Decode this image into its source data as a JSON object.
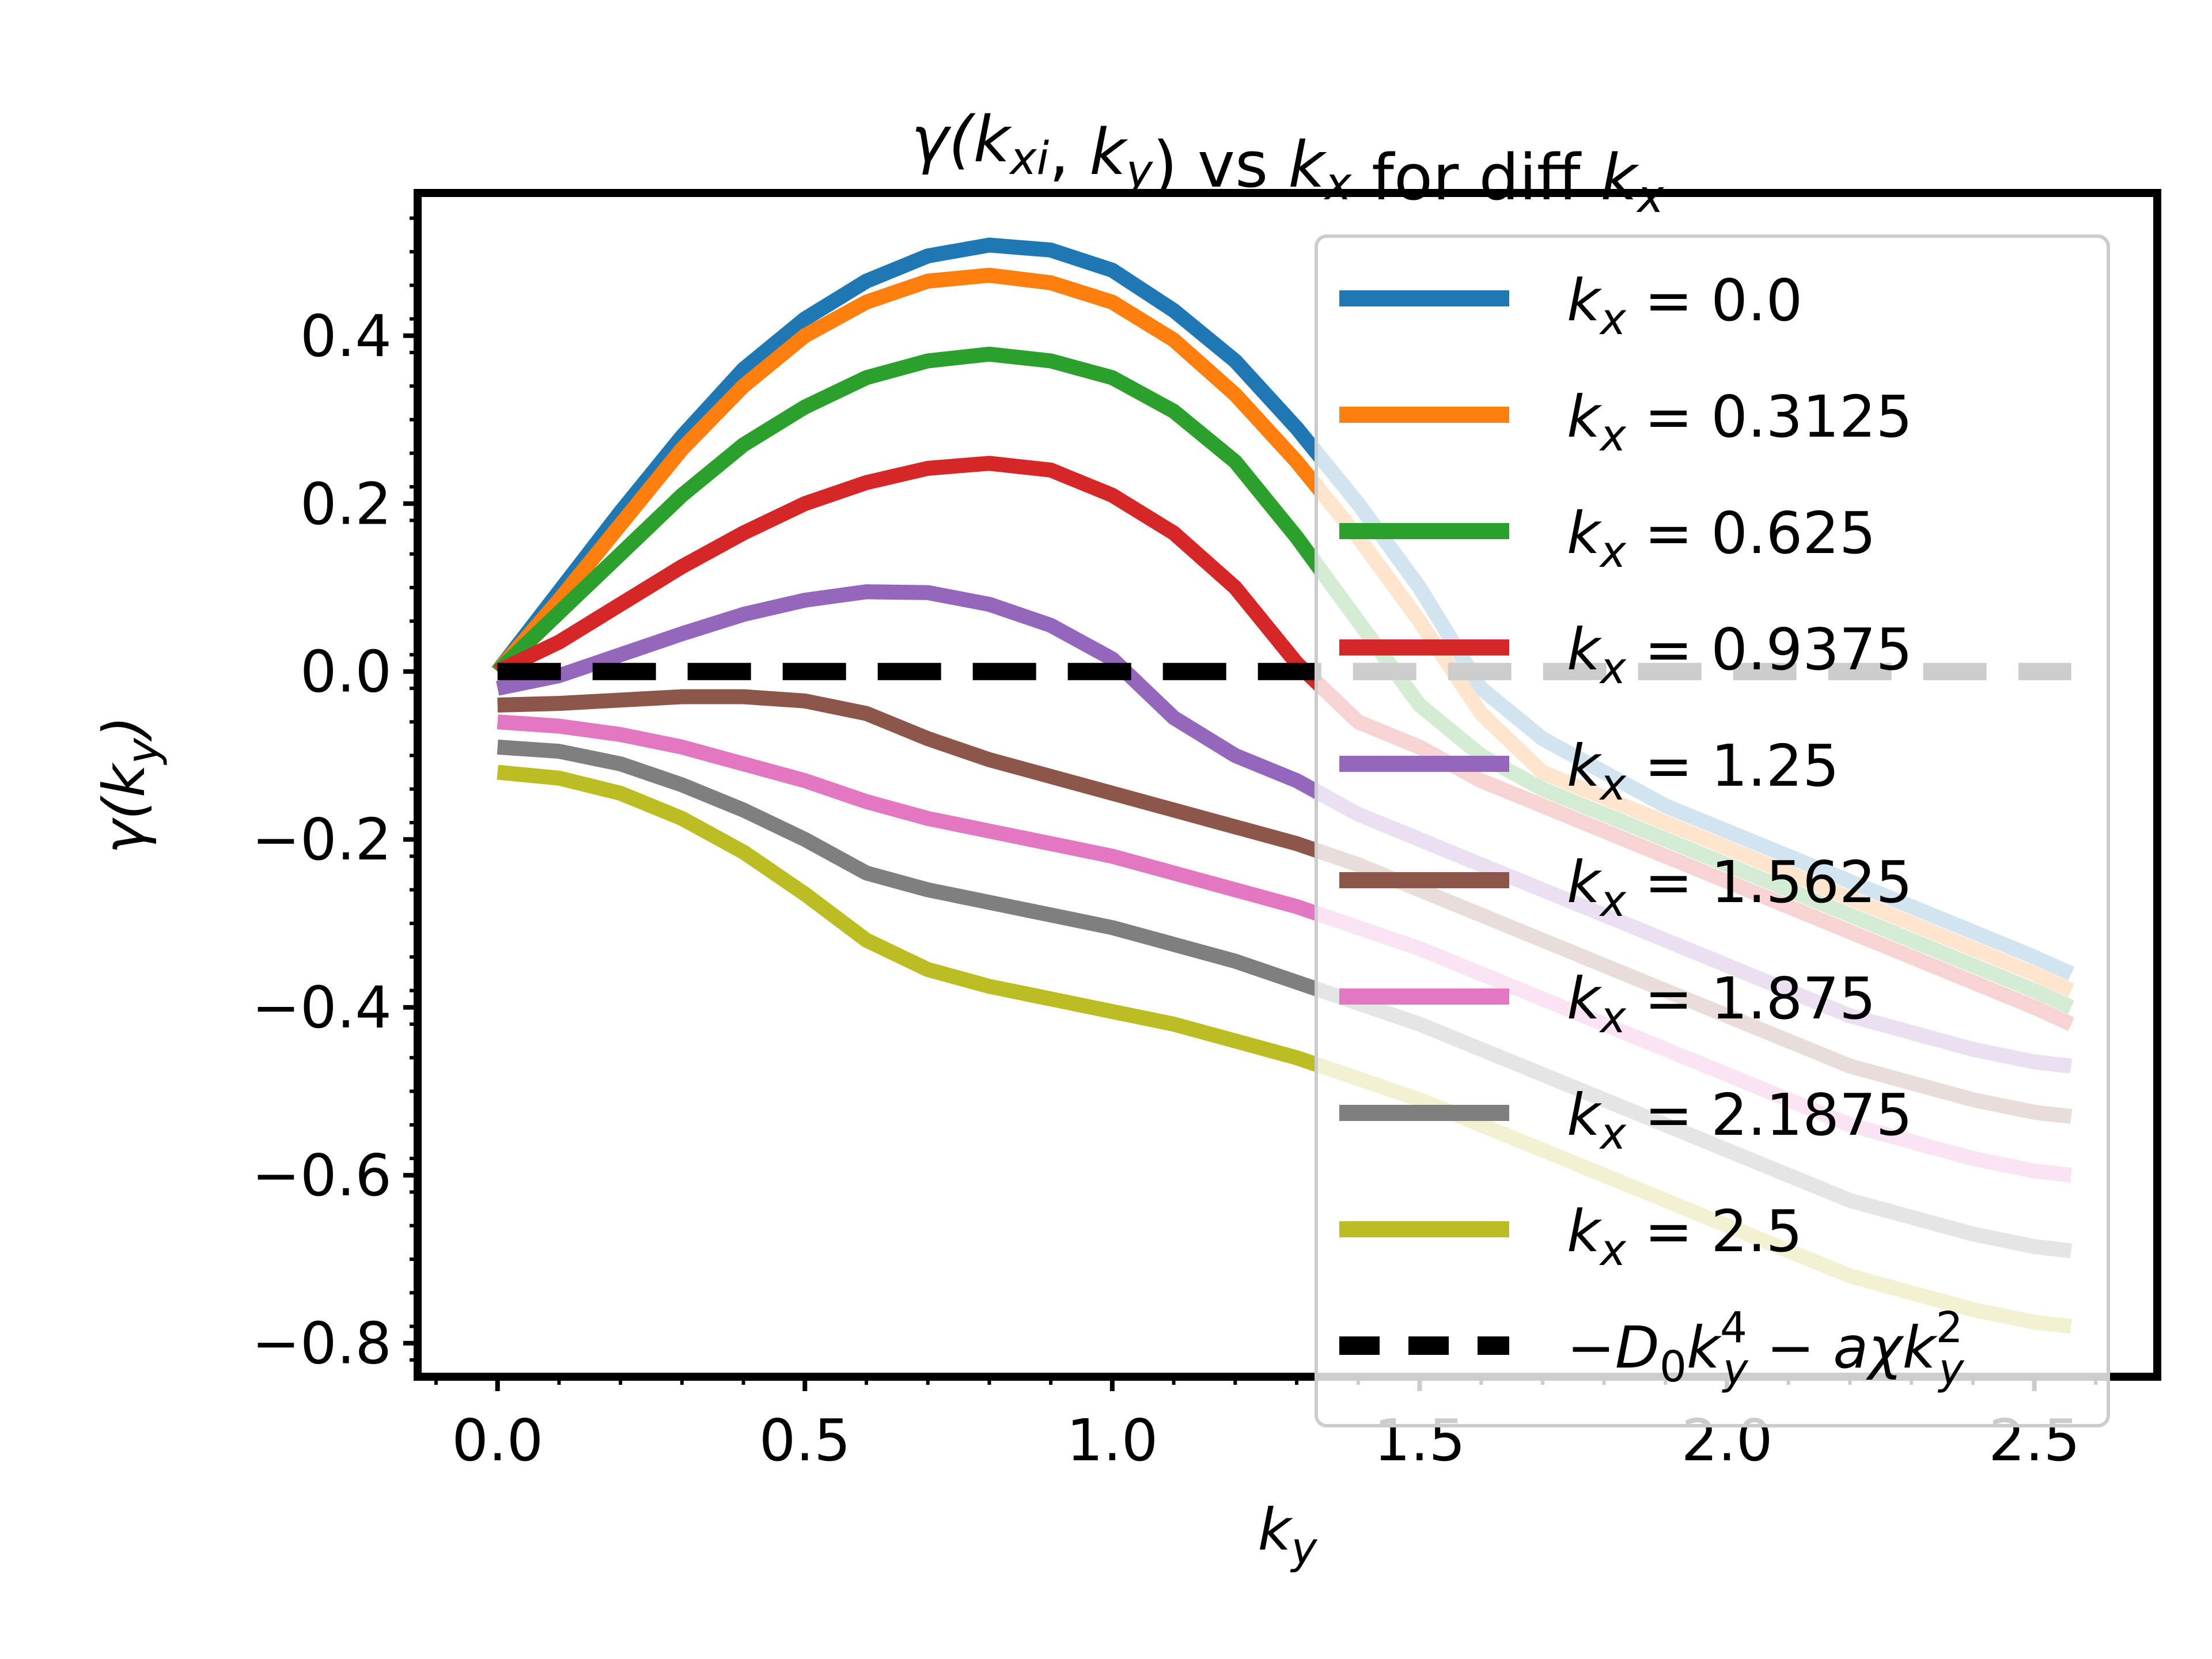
{
  "chart_data": {
    "type": "line",
    "title": {
      "parts": [
        {
          "t": "γ(",
          "math": true
        },
        {
          "t": "k",
          "math": true
        },
        {
          "t": "xi",
          "math": true,
          "sub": true
        },
        {
          "t": ", ",
          "math": false
        },
        {
          "t": "k",
          "math": true
        },
        {
          "t": "y",
          "math": true,
          "sub": true
        },
        {
          "t": ") vs ",
          "math": false
        },
        {
          "t": "k",
          "math": true
        },
        {
          "t": "x",
          "math": true,
          "sub": true
        },
        {
          "t": " for diff ",
          "math": false
        },
        {
          "t": "k",
          "math": true
        },
        {
          "t": "x",
          "math": true,
          "sub": true
        }
      ]
    },
    "xlabel": {
      "main": "k",
      "sub": "y"
    },
    "ylabel": {
      "main": "γ(k",
      "sub": "y",
      "tail": ")"
    },
    "xlim": [
      -0.13,
      2.7
    ],
    "ylim": [
      -0.84,
      0.57
    ],
    "xticks": [
      "0.0",
      "0.5",
      "1.0",
      "1.5",
      "2.0",
      "2.5"
    ],
    "xtick_values": [
      0.0,
      0.5,
      1.0,
      1.5,
      2.0,
      2.5
    ],
    "yticks": [
      "0.4",
      "0.2",
      "0.0",
      "−0.2",
      "−0.4",
      "−0.6",
      "−0.8"
    ],
    "ytick_values": [
      0.4,
      0.2,
      0.0,
      -0.2,
      -0.4,
      -0.6,
      -0.8
    ],
    "grid": false,
    "legend_position": "top-right",
    "x": [
      0.0,
      0.1,
      0.2,
      0.3,
      0.4,
      0.5,
      0.6,
      0.7,
      0.8,
      0.9,
      1.0,
      1.1,
      1.2,
      1.3,
      1.4,
      1.5,
      1.6,
      1.7,
      1.8,
      1.9,
      2.0,
      2.1,
      2.2,
      2.3,
      2.4,
      2.5,
      2.56
    ],
    "series": [
      {
        "name": "k_x = 0.0",
        "label_main": "k",
        "label_sub": "x",
        "label_value": " = 0.0",
        "color": "#1f77b4",
        "dash": false,
        "values": [
          0.0,
          0.095,
          0.19,
          0.28,
          0.36,
          0.42,
          0.465,
          0.495,
          0.508,
          0.502,
          0.478,
          0.43,
          0.37,
          0.29,
          0.2,
          0.1,
          -0.02,
          -0.08,
          -0.12,
          -0.16,
          -0.19,
          -0.22,
          -0.25,
          -0.28,
          -0.31,
          -0.34,
          -0.36
        ]
      },
      {
        "name": "k_x = 0.3125",
        "label_main": "k",
        "label_sub": "x",
        "label_value": " = 0.3125",
        "color": "#ff7f0e",
        "dash": false,
        "values": [
          0.0,
          0.085,
          0.175,
          0.265,
          0.34,
          0.4,
          0.44,
          0.465,
          0.472,
          0.463,
          0.44,
          0.395,
          0.33,
          0.25,
          0.16,
          0.06,
          -0.05,
          -0.12,
          -0.15,
          -0.18,
          -0.21,
          -0.24,
          -0.27,
          -0.3,
          -0.33,
          -0.36,
          -0.38
        ]
      },
      {
        "name": "k_x = 0.625",
        "label_main": "k",
        "label_sub": "x",
        "label_value": " = 0.625",
        "color": "#2ca02c",
        "dash": false,
        "values": [
          0.0,
          0.07,
          0.14,
          0.21,
          0.27,
          0.315,
          0.35,
          0.37,
          0.378,
          0.37,
          0.35,
          0.31,
          0.25,
          0.16,
          0.06,
          -0.04,
          -0.1,
          -0.14,
          -0.17,
          -0.2,
          -0.23,
          -0.26,
          -0.29,
          -0.32,
          -0.35,
          -0.38,
          -0.4
        ]
      },
      {
        "name": "k_x = 0.9375",
        "label_main": "k",
        "label_sub": "x",
        "label_value": " = 0.9375",
        "color": "#d62728",
        "dash": false,
        "values": [
          0.0,
          0.035,
          0.08,
          0.125,
          0.165,
          0.2,
          0.225,
          0.242,
          0.248,
          0.24,
          0.21,
          0.165,
          0.1,
          0.01,
          -0.06,
          -0.09,
          -0.13,
          -0.16,
          -0.19,
          -0.22,
          -0.25,
          -0.28,
          -0.31,
          -0.34,
          -0.37,
          -0.4,
          -0.42
        ]
      },
      {
        "name": "k_x = 1.25",
        "label_main": "k",
        "label_sub": "x",
        "label_value": " = 1.25",
        "color": "#9467bd",
        "dash": false,
        "values": [
          -0.02,
          -0.005,
          0.02,
          0.045,
          0.068,
          0.085,
          0.095,
          0.094,
          0.08,
          0.055,
          0.015,
          -0.055,
          -0.1,
          -0.13,
          -0.17,
          -0.2,
          -0.23,
          -0.26,
          -0.29,
          -0.32,
          -0.35,
          -0.38,
          -0.41,
          -0.43,
          -0.45,
          -0.465,
          -0.47
        ]
      },
      {
        "name": "k_x = 1.5625",
        "label_main": "k",
        "label_sub": "x",
        "label_value": " = 1.5625",
        "color": "#8c564b",
        "dash": false,
        "values": [
          -0.04,
          -0.038,
          -0.034,
          -0.03,
          -0.03,
          -0.035,
          -0.05,
          -0.08,
          -0.105,
          -0.125,
          -0.145,
          -0.165,
          -0.185,
          -0.205,
          -0.23,
          -0.26,
          -0.29,
          -0.32,
          -0.35,
          -0.38,
          -0.41,
          -0.44,
          -0.47,
          -0.49,
          -0.51,
          -0.525,
          -0.53
        ]
      },
      {
        "name": "k_x = 1.875",
        "label_main": "k",
        "label_sub": "x",
        "label_value": " = 1.875",
        "color": "#e377c2",
        "dash": false,
        "values": [
          -0.06,
          -0.065,
          -0.075,
          -0.09,
          -0.11,
          -0.13,
          -0.155,
          -0.175,
          -0.19,
          -0.205,
          -0.22,
          -0.24,
          -0.26,
          -0.28,
          -0.305,
          -0.33,
          -0.36,
          -0.39,
          -0.42,
          -0.45,
          -0.48,
          -0.51,
          -0.54,
          -0.56,
          -0.58,
          -0.595,
          -0.6
        ]
      },
      {
        "name": "k_x = 2.1875",
        "label_main": "k",
        "label_sub": "x",
        "label_value": " = 2.1875",
        "color": "#7f7f7f",
        "dash": false,
        "values": [
          -0.09,
          -0.095,
          -0.11,
          -0.135,
          -0.165,
          -0.2,
          -0.24,
          -0.26,
          -0.275,
          -0.29,
          -0.305,
          -0.325,
          -0.345,
          -0.37,
          -0.395,
          -0.42,
          -0.45,
          -0.48,
          -0.51,
          -0.54,
          -0.57,
          -0.6,
          -0.63,
          -0.65,
          -0.67,
          -0.685,
          -0.69
        ]
      },
      {
        "name": "k_x = 2.5",
        "label_main": "k",
        "label_sub": "x",
        "label_value": " = 2.5",
        "color": "#bcbd22",
        "dash": false,
        "values": [
          -0.12,
          -0.127,
          -0.145,
          -0.175,
          -0.215,
          -0.265,
          -0.32,
          -0.355,
          -0.375,
          -0.39,
          -0.405,
          -0.42,
          -0.44,
          -0.46,
          -0.485,
          -0.51,
          -0.54,
          -0.57,
          -0.6,
          -0.63,
          -0.66,
          -0.69,
          -0.72,
          -0.74,
          -0.76,
          -0.775,
          -0.78
        ]
      },
      {
        "name": "−D_0 k_y^4 − aχk_y^2",
        "legend_math": "dashed",
        "color": "#000000",
        "dash": true,
        "values": [
          0.0,
          0.0,
          0.0,
          0.0,
          0.0,
          0.0,
          0.0,
          0.0,
          0.0,
          0.0,
          0.0,
          0.0,
          0.0,
          0.0,
          0.0,
          0.0,
          0.0,
          0.0,
          0.0,
          0.0,
          0.0,
          0.0,
          0.0,
          0.0,
          0.0,
          0.0,
          0.0
        ]
      }
    ]
  }
}
